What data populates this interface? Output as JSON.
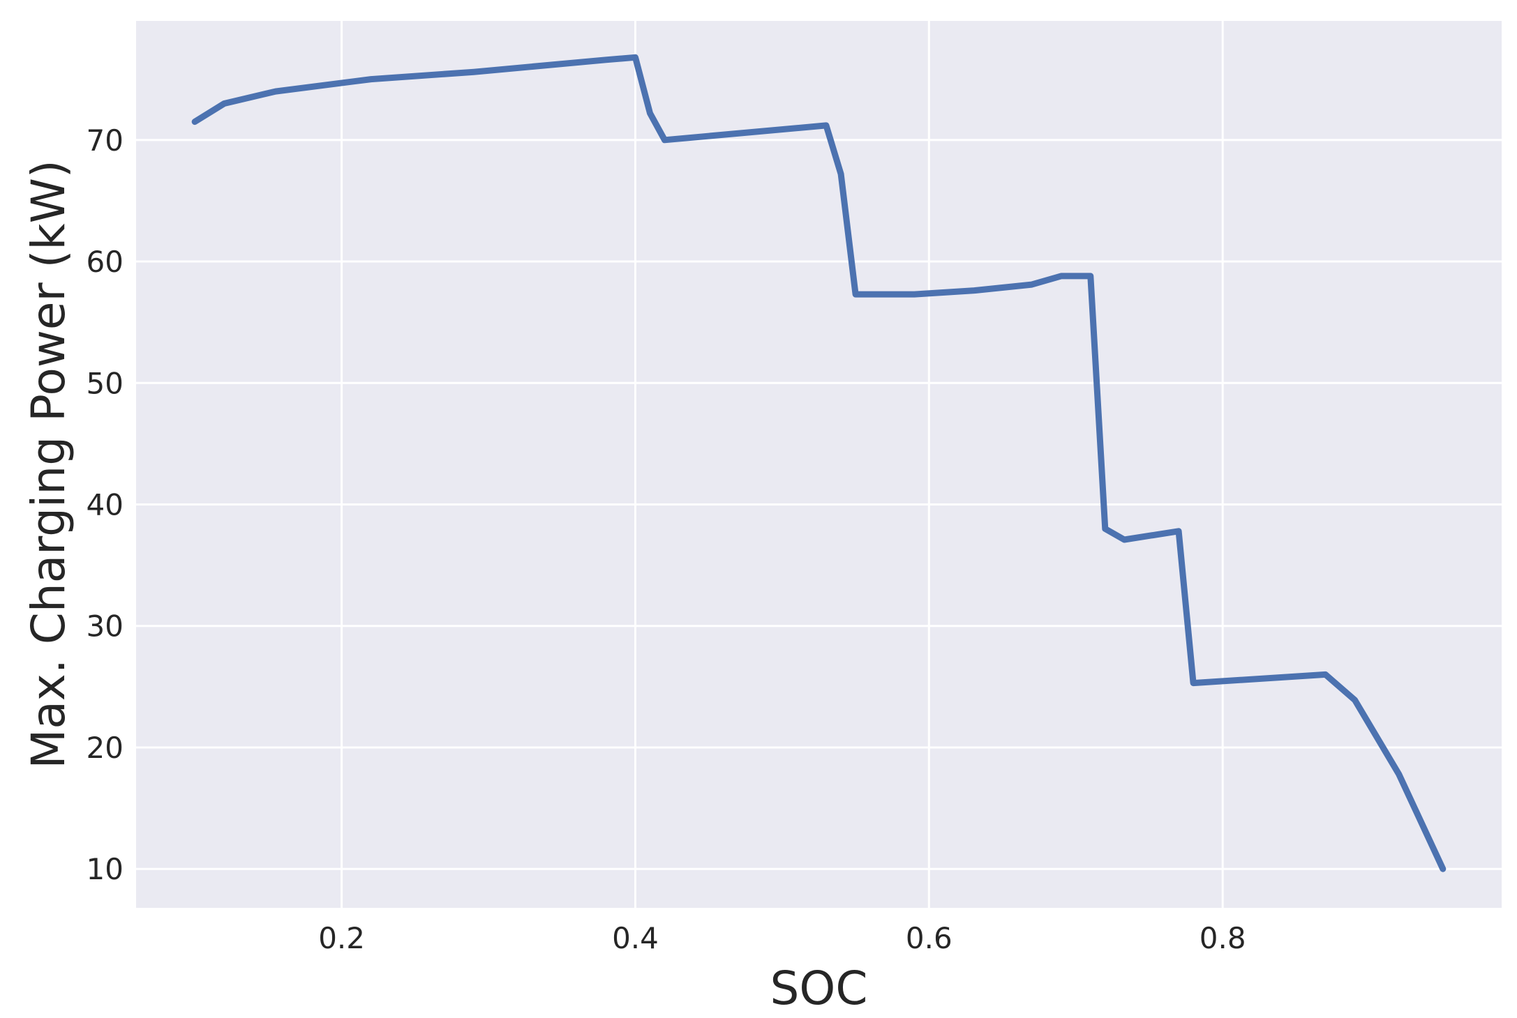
{
  "chart_data": {
    "type": "line",
    "title": "",
    "xlabel": "SOC",
    "ylabel": "Max. Charging Power (kW)",
    "xlim": [
      0.06,
      0.99
    ],
    "ylim": [
      6.8,
      79.8
    ],
    "xticks": [
      0.2,
      0.4,
      0.6,
      0.8
    ],
    "xtick_labels": [
      "0.2",
      "0.4",
      "0.6",
      "0.8"
    ],
    "yticks": [
      10,
      20,
      30,
      40,
      50,
      60,
      70
    ],
    "ytick_labels": [
      "10",
      "20",
      "30",
      "40",
      "50",
      "60",
      "70"
    ],
    "grid": true,
    "legend": "none",
    "background_color": "#eaeaf2",
    "grid_color": "#ffffff",
    "series": [
      {
        "color": "#4c72b0",
        "x": [
          0.1,
          0.12,
          0.155,
          0.22,
          0.29,
          0.38,
          0.4,
          0.41,
          0.42,
          0.53,
          0.54,
          0.55,
          0.59,
          0.63,
          0.67,
          0.69,
          0.71,
          0.72,
          0.733,
          0.77,
          0.78,
          0.87,
          0.89,
          0.92,
          0.95
        ],
        "y": [
          71.5,
          73.0,
          74.0,
          75.0,
          75.6,
          76.6,
          76.8,
          72.2,
          70.0,
          71.2,
          67.2,
          57.3,
          57.3,
          57.6,
          58.1,
          58.8,
          58.8,
          38.0,
          37.1,
          37.8,
          25.3,
          26.0,
          23.9,
          17.8,
          10.0
        ]
      }
    ]
  }
}
